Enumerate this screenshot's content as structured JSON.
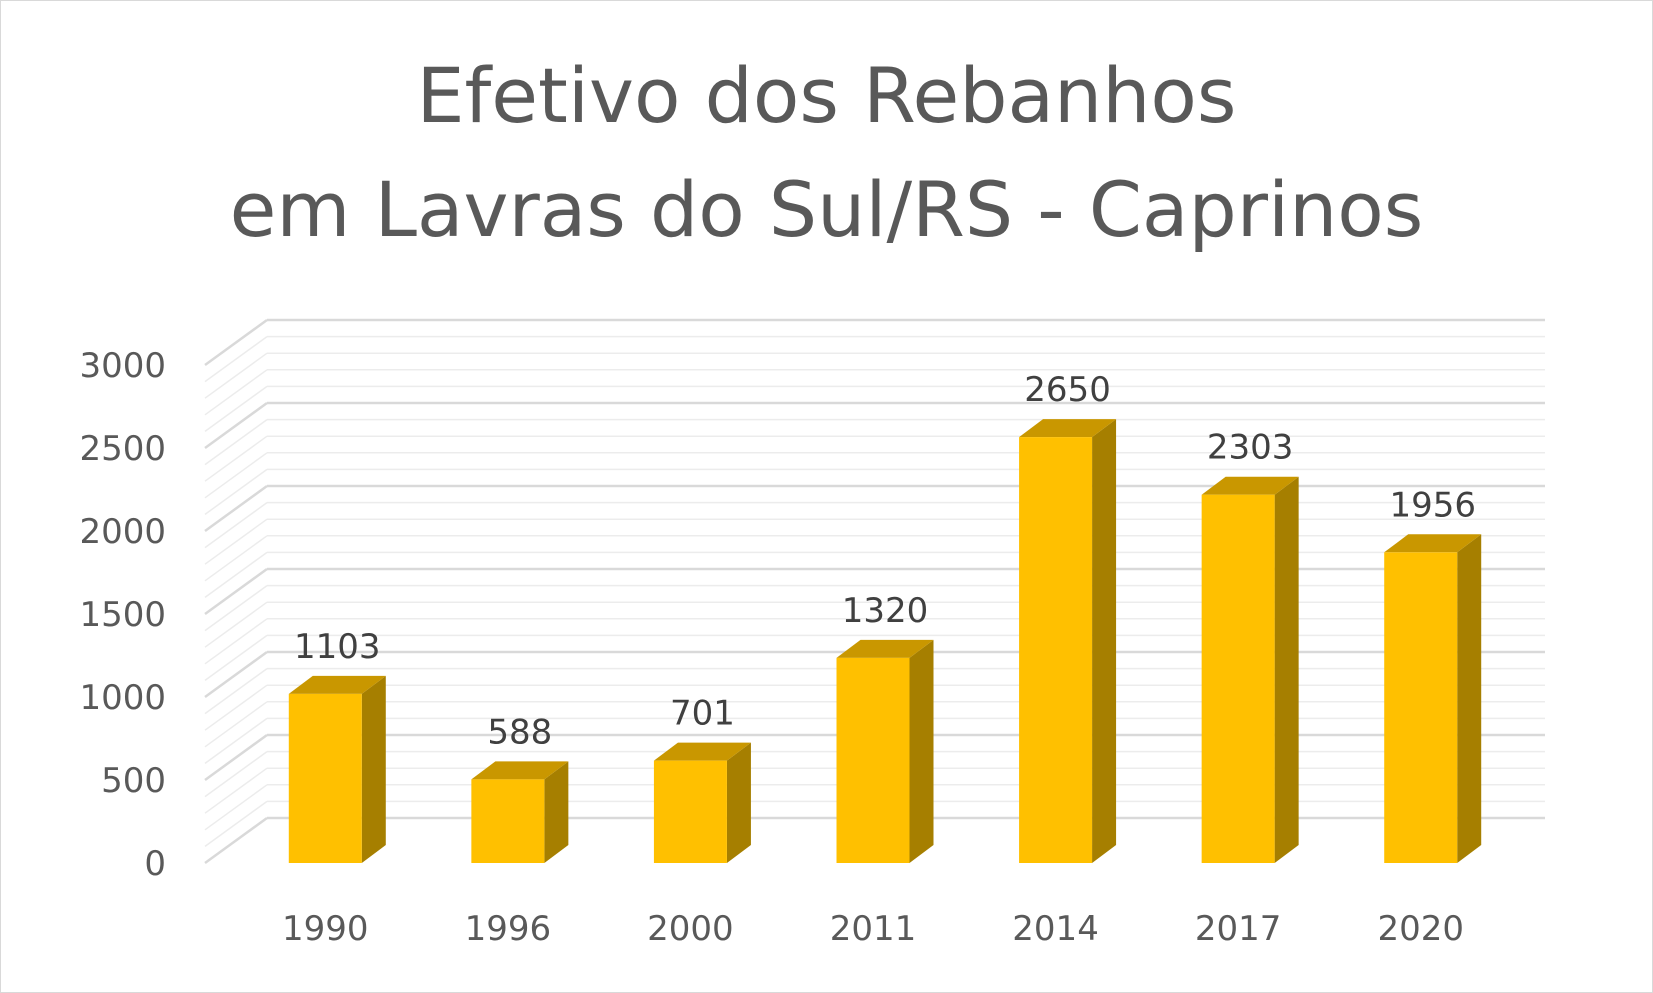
{
  "chart_data": {
    "type": "bar",
    "title_lines": [
      "Efetivo dos Rebanhos",
      "em Lavras do Sul/RS - Caprinos"
    ],
    "categories": [
      "1990",
      "1996",
      "2000",
      "2011",
      "2014",
      "2017",
      "2020"
    ],
    "values": [
      1103,
      588,
      701,
      1320,
      2650,
      2303,
      1956
    ],
    "data_labels": [
      "1103",
      "588",
      "701",
      "1320",
      "2650",
      "2303",
      "1956"
    ],
    "yticks": [
      "0",
      "500",
      "1000",
      "1500",
      "2000",
      "2500",
      "3000"
    ],
    "ylim": [
      0,
      3000
    ],
    "xlabel": "",
    "ylabel": "",
    "grid": true,
    "legend": "none",
    "style": "3d-column",
    "colors": {
      "bar_front": "#ffc000",
      "bar_top": "#c99700",
      "bar_side": "#a67f00",
      "gridline": "#d9d9d9",
      "minor_gridline": "#ececec",
      "text": "#595959"
    }
  }
}
